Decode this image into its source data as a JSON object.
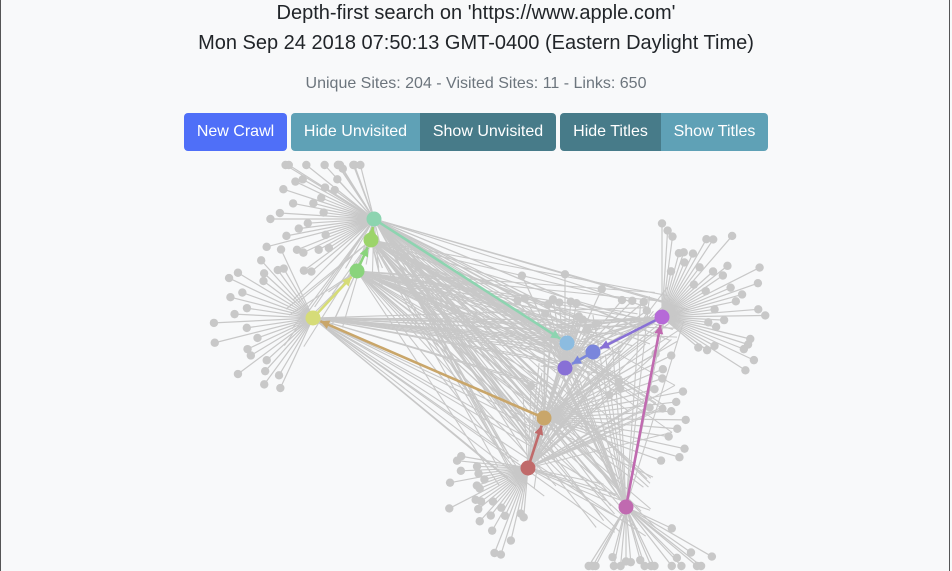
{
  "header": {
    "title_line1": "Depth-first search on 'https://www.apple.com'",
    "title_line2": "Mon Sep 24 2018 07:50:13 GMT-0400 (Eastern Daylight Time)"
  },
  "stats": {
    "text": "Unique Sites: 204 - Visited Sites: 11 - Links: 650"
  },
  "controls": {
    "new_crawl": "New Crawl",
    "hide_unvisited": "Hide Unvisited",
    "show_unvisited": "Show Unvisited",
    "hide_titles": "Hide Titles",
    "show_titles": "Show Titles"
  },
  "colors": {
    "unvisited_node": "#c8c8c8",
    "link": "#c8c8c8",
    "visited": [
      "#8dd4b0",
      "#9cd46a",
      "#8ad47c",
      "#d6dc78",
      "#c9a66a",
      "#c06a6a",
      "#c06ab0",
      "#b66ad8",
      "#8870d6",
      "#7a86dc",
      "#8cbce0"
    ]
  }
}
